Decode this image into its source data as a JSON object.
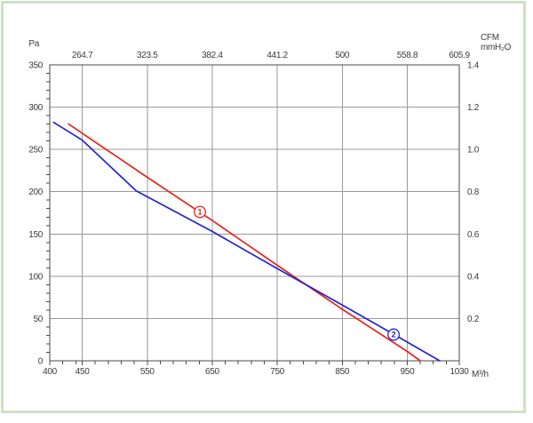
{
  "page": {
    "background": "#ffffff",
    "frame_color": "#cfe0c6"
  },
  "chart_data": {
    "type": "line",
    "title": "",
    "grid": true,
    "legend": "none",
    "colors": {
      "grid": "#9a9a9a",
      "axis": "#4a4a4a",
      "text": "#3b3b3b",
      "curve1": "#e8251f",
      "curve2": "#2323d6"
    },
    "axes": {
      "left": {
        "unit_label": "Pa",
        "min": 0,
        "max": 350,
        "tick_step": 50,
        "tick_labels": [
          "350",
          "300",
          "250",
          "200",
          "150",
          "100",
          "50",
          "0"
        ],
        "tick_values": [
          350,
          300,
          250,
          200,
          150,
          100,
          50,
          0
        ],
        "minor_step": 10
      },
      "right": {
        "unit_label_line1": "CFM",
        "unit_label_line2": "mmH₂O",
        "tick_labels": [
          "1.4",
          "1.2",
          "1.0",
          "0.8",
          "0.6",
          "0.4",
          "0.2"
        ],
        "tick_values_pa": [
          350,
          300,
          250,
          200,
          150,
          100,
          50
        ],
        "pa_per_unit": 250
      },
      "bottom": {
        "unit_label": "M³/h",
        "min": 400,
        "max": 1030,
        "tick_labels": [
          "400",
          "450",
          "550",
          "650",
          "750",
          "850",
          "950",
          "1030"
        ],
        "tick_values": [
          400,
          450,
          550,
          650,
          750,
          850,
          950,
          1030
        ],
        "gridlines": [
          450,
          550,
          650,
          750,
          850,
          950
        ],
        "minor_ticks": [
          420,
          440,
          470,
          490,
          510,
          530,
          570,
          590,
          610,
          630,
          670,
          690,
          710,
          730,
          770,
          790,
          810,
          830,
          870,
          890,
          910,
          930,
          970,
          990,
          1010
        ]
      },
      "top": {
        "tick_labels": [
          "264.7",
          "323.5",
          "382.4",
          "441.2",
          "500",
          "558.8",
          "605.9"
        ],
        "positions": [
          450,
          550,
          650,
          750,
          850,
          950,
          1030
        ]
      }
    },
    "series": [
      {
        "name": "1",
        "marker_label": "1",
        "color": "#e8251f",
        "marker_at": [
          631,
          176
        ],
        "points": [
          [
            429,
            280
          ],
          [
            550,
            217
          ],
          [
            650,
            166
          ],
          [
            750,
            113
          ],
          [
            850,
            61
          ],
          [
            950,
            11
          ],
          [
            970,
            0
          ]
        ]
      },
      {
        "name": "2",
        "marker_label": "2",
        "color": "#2323d6",
        "marker_at": [
          929,
          31
        ],
        "points": [
          [
            406,
            282
          ],
          [
            450,
            261
          ],
          [
            533,
            201
          ],
          [
            650,
            153
          ],
          [
            750,
            109
          ],
          [
            850,
            66
          ],
          [
            930,
            31
          ],
          [
            1000,
            0
          ]
        ]
      }
    ]
  }
}
